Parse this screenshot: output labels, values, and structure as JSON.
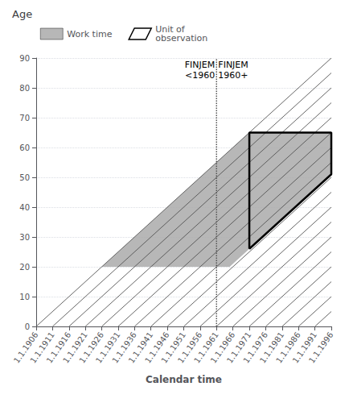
{
  "chart_data": {
    "type": "line",
    "title": "Age",
    "xlabel": "Calendar time",
    "xlim": [
      1906,
      1996
    ],
    "ylim": [
      0,
      90
    ],
    "xticks": [
      {
        "value": 1906,
        "label": "1.1.1906"
      },
      {
        "value": 1911,
        "label": "1.1.1911"
      },
      {
        "value": 1916,
        "label": "1.1.1916"
      },
      {
        "value": 1921,
        "label": "1.1.1921"
      },
      {
        "value": 1926,
        "label": "1.1.1926"
      },
      {
        "value": 1931,
        "label": "1.1.1931"
      },
      {
        "value": 1936,
        "label": "1.1.1936"
      },
      {
        "value": 1941,
        "label": "1.1.1941"
      },
      {
        "value": 1946,
        "label": "1.1.1946"
      },
      {
        "value": 1951,
        "label": "1.1.1951"
      },
      {
        "value": 1956,
        "label": "1.1.1956"
      },
      {
        "value": 1961,
        "label": "1.1.1961"
      },
      {
        "value": 1966,
        "label": "1.1.1966"
      },
      {
        "value": 1971,
        "label": "1.1.1971"
      },
      {
        "value": 1976,
        "label": "1.1.1976"
      },
      {
        "value": 1981,
        "label": "1.1.1981"
      },
      {
        "value": 1986,
        "label": "1.1.1986"
      },
      {
        "value": 1991,
        "label": "1.1.1991"
      },
      {
        "value": 1996,
        "label": "1.1.1996"
      }
    ],
    "yticks": [
      0,
      10,
      20,
      30,
      40,
      50,
      60,
      70,
      80,
      90
    ],
    "grid": true,
    "legend": "upper left",
    "series": [
      {
        "name": "Work time",
        "type": "area",
        "color": "#aaaaaa",
        "x": [
          1926,
          1965,
          1996,
          1996,
          1971
        ],
        "values": [
          20,
          20,
          51,
          65,
          65
        ]
      },
      {
        "type": "line",
        "color": "#555555",
        "line_style": "solid",
        "x": [
          1906,
          1996,
          null,
          1911,
          1996,
          null,
          1916,
          1996,
          null,
          1921,
          1996,
          null,
          1926,
          1996,
          null,
          1931,
          1996,
          null,
          1936,
          1996,
          null,
          1941,
          1996,
          null,
          1946,
          1996,
          null,
          1951,
          1996,
          null,
          1956,
          1996,
          null,
          1961,
          1996,
          null,
          1966,
          1996,
          null,
          1971,
          1996,
          null,
          1976,
          1996,
          null,
          1981,
          1996,
          null,
          1986,
          1996,
          null,
          1991,
          1996,
          null,
          1996,
          1996
        ],
        "values": [
          0,
          90,
          null,
          0,
          85,
          null,
          0,
          80,
          null,
          0,
          75,
          null,
          0,
          70,
          null,
          0,
          65,
          null,
          0,
          60,
          null,
          0,
          55,
          null,
          0,
          50,
          null,
          0,
          45,
          null,
          0,
          40,
          null,
          0,
          35,
          null,
          0,
          30,
          null,
          0,
          25,
          null,
          0,
          20,
          null,
          0,
          15,
          null,
          0,
          10,
          null,
          0,
          5,
          null,
          0,
          0
        ]
      },
      {
        "type": "line",
        "color": "#555555",
        "line_style": "dotted",
        "x": [
          1961,
          1961
        ],
        "values": [
          0,
          90
        ]
      },
      {
        "name": "Unit of\nobservation",
        "type": "line",
        "color": "#000000",
        "line_style": "solid",
        "x": [
          1971,
          1996,
          1996,
          1971,
          1971
        ],
        "values": [
          26,
          51,
          65,
          65,
          26
        ]
      }
    ],
    "annotations": [
      {
        "text": "FINJEM\n<1960",
        "x": 1960.5,
        "y": 89.5
      },
      {
        "text": "FINJEM\n1960+",
        "x": 1961.5,
        "y": 89.5
      }
    ]
  }
}
